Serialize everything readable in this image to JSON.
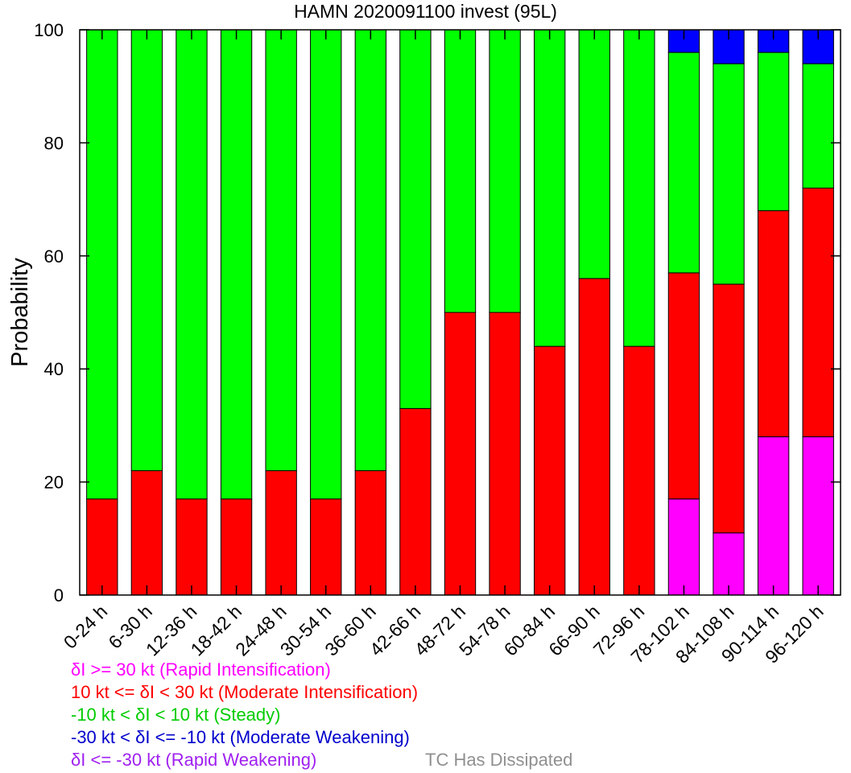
{
  "chart_data": {
    "type": "bar",
    "stacked": true,
    "title": "HAMN 2020091100 invest (95L)",
    "ylabel": "Probability",
    "xlabel": "",
    "ylim": [
      0,
      100
    ],
    "yticks": [
      0,
      20,
      40,
      60,
      80,
      100
    ],
    "grid": false,
    "categories": [
      "0-24 h",
      "6-30 h",
      "12-36 h",
      "18-42 h",
      "24-48 h",
      "30-54 h",
      "36-60 h",
      "42-66 h",
      "48-72 h",
      "54-78 h",
      "60-84 h",
      "66-90 h",
      "72-96 h",
      "78-102 h",
      "84-108 h",
      "90-114 h",
      "96-120 h"
    ],
    "series": [
      {
        "key": "ri",
        "color": "#ff00ff",
        "values": [
          0,
          0,
          0,
          0,
          0,
          0,
          0,
          0,
          0,
          0,
          0,
          0,
          0,
          17,
          11,
          28,
          28
        ]
      },
      {
        "key": "mi",
        "color": "#ff0000",
        "values": [
          17,
          22,
          17,
          17,
          22,
          17,
          22,
          33,
          50,
          50,
          44,
          56,
          44,
          40,
          44,
          40,
          44
        ]
      },
      {
        "key": "st",
        "color": "#00ff00",
        "values": [
          83,
          78,
          83,
          83,
          78,
          83,
          78,
          67,
          50,
          50,
          56,
          44,
          56,
          39,
          39,
          28,
          22
        ]
      },
      {
        "key": "mw",
        "color": "#0000ff",
        "values": [
          0,
          0,
          0,
          0,
          0,
          0,
          0,
          0,
          0,
          0,
          0,
          0,
          0,
          4,
          6,
          4,
          6
        ]
      },
      {
        "key": "rw",
        "color": "#a020f0",
        "values": [
          0,
          0,
          0,
          0,
          0,
          0,
          0,
          0,
          0,
          0,
          0,
          0,
          0,
          0,
          0,
          0,
          0
        ]
      }
    ],
    "legend": {
      "placement": "bottom-left",
      "ri": "δI >= 30 kt (Rapid Intensification)",
      "mi": "10 kt <= δI < 30 kt (Moderate Intensification)",
      "st": "-10 kt < δI < 10 kt (Steady)",
      "mw": "-30 kt < δI <= -10 kt (Moderate Weakening)",
      "rw": "δI <= -30 kt (Rapid Weakening)",
      "tc": "TC Has Dissipated",
      "colors": {
        "ri": "#ff00ff",
        "mi": "#ff0000",
        "st": "#00cc00",
        "mw": "#0000cc",
        "rw": "#a020f0",
        "tc": "#909090"
      }
    }
  }
}
